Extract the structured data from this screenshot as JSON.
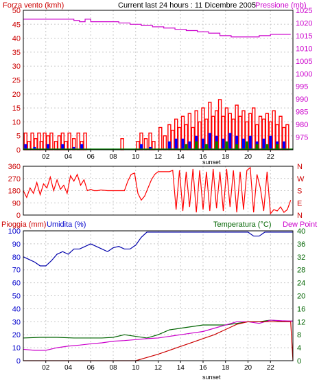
{
  "header": {
    "left_label": "Forza vento (kmh)",
    "center_label": "Current last 24 hours : 11 Dicembre 2005",
    "right_label": "Pressione (mb)"
  },
  "colors": {
    "frame": "#000000",
    "grid": "#c8c8c8",
    "wind": "#ff0000",
    "wind_mid": "#0000ff",
    "wind_low": "#008000",
    "pressure": "#cc00cc",
    "direction": "#ff0000",
    "rain": "#cc0000",
    "humidity": "#0000aa",
    "temperature": "#006400",
    "dewpoint": "#cc00cc",
    "left_axis_red": "#cc0000",
    "right_axis_magenta": "#cc00cc",
    "humidity_axis": "#0000cc",
    "temp_axis": "#006400"
  },
  "chart_data": [
    {
      "type": "bar",
      "title": "Current last 24 hours : 11 Dicembre 2005",
      "ylabel": "Forza vento (kmh)",
      "y2label": "Pressione (mb)",
      "ylim": [
        0,
        50
      ],
      "y2lim": [
        970,
        1025
      ],
      "x_ticks": [
        "02",
        "04",
        "06",
        "08",
        "10",
        "12",
        "14",
        "16",
        "18",
        "20",
        "22"
      ],
      "x_range": [
        0,
        24
      ],
      "sunset_label": "sunset",
      "y_ticks": [
        0,
        5,
        10,
        15,
        20,
        25,
        30,
        35,
        40,
        45,
        50
      ],
      "y2_ticks": [
        975,
        980,
        985,
        990,
        995,
        1000,
        1005,
        1010,
        1015,
        1020,
        1025
      ],
      "wind_gust_x": [
        0.2,
        0.5,
        0.8,
        1.1,
        1.4,
        1.6,
        1.9,
        2.2,
        2.5,
        2.9,
        3.2,
        3.5,
        3.8,
        4.1,
        4.5,
        4.9,
        5.2,
        5.5,
        8.8,
        10.2,
        10.5,
        10.9,
        11.3,
        11.6,
        12.2,
        12.6,
        13.0,
        13.3,
        13.6,
        13.9,
        14.2,
        14.5,
        14.8,
        15.1,
        15.4,
        15.7,
        16.0,
        16.3,
        16.6,
        16.9,
        17.2,
        17.5,
        17.8,
        18.1,
        18.4,
        18.7,
        19.0,
        19.3,
        19.6,
        19.9,
        20.2,
        20.5,
        20.8,
        21.1,
        21.4,
        21.7,
        22.0,
        22.3,
        22.6,
        22.9,
        23.2,
        23.5
      ],
      "wind_gust_y": [
        6,
        3,
        6,
        4,
        6,
        3,
        6,
        5,
        6,
        3,
        5,
        6,
        3,
        6,
        4,
        6,
        3,
        6,
        4,
        3,
        6,
        4,
        6,
        3,
        8,
        5,
        9,
        7,
        11,
        8,
        12,
        9,
        13,
        8,
        14,
        10,
        15,
        11,
        17,
        12,
        14,
        18,
        12,
        15,
        13,
        11,
        16,
        12,
        14,
        10,
        13,
        15,
        9,
        12,
        11,
        13,
        10,
        14,
        9,
        12,
        8,
        9
      ],
      "wind_avg_x": [
        0.2,
        1.0,
        2.2,
        3.5,
        4.5,
        5.2,
        10.5,
        11.3,
        13.0,
        13.6,
        14.2,
        14.8,
        15.4,
        16.0,
        16.6,
        17.2,
        17.8,
        18.4,
        19.0,
        19.6,
        20.2,
        20.8,
        21.4,
        22.0,
        22.6,
        23.2
      ],
      "wind_avg_y": [
        2,
        1,
        2,
        2,
        1,
        2,
        2,
        1,
        3,
        4,
        4,
        3,
        5,
        4,
        6,
        5,
        4,
        6,
        5,
        4,
        5,
        3,
        4,
        5,
        3,
        3
      ],
      "wind_low_x": [
        14.5,
        15.4,
        16.3,
        17.2,
        18.1,
        19.0,
        19.9,
        20.8,
        21.7,
        22.6
      ],
      "wind_low_y": [
        2,
        3,
        2,
        3,
        3,
        2,
        3,
        2,
        2,
        2
      ],
      "pressure_x": [
        0,
        3.5,
        4.5,
        5.0,
        5.5,
        6.0,
        7.0,
        8.5,
        9.5,
        10.5,
        11.5,
        12.5,
        13.5,
        14.5,
        15.5,
        16.5,
        17.5,
        18.5,
        19.5,
        20.0,
        21.0,
        22.0,
        23.0,
        23.8
      ],
      "pressure_y": [
        1021.5,
        1021.5,
        1021,
        1020.5,
        1021.5,
        1020.5,
        1020.5,
        1020,
        1019.5,
        1019,
        1018.5,
        1018,
        1017.5,
        1017,
        1016.5,
        1016,
        1015,
        1014.5,
        1014.5,
        1014.5,
        1015,
        1015.5,
        1015.5,
        1015.5
      ]
    },
    {
      "type": "line",
      "ylabel_ticks": [
        "360",
        "270",
        "180",
        "90",
        "0"
      ],
      "y2_labels": [
        "N",
        "W",
        "S",
        "E",
        "N"
      ],
      "ylim": [
        0,
        360
      ],
      "x_range": [
        0,
        24
      ],
      "direction_x": [
        0,
        0.3,
        0.6,
        0.9,
        1.2,
        1.5,
        1.8,
        2.1,
        2.4,
        2.7,
        3.0,
        3.3,
        3.6,
        3.9,
        4.2,
        4.5,
        4.8,
        5.1,
        5.4,
        5.7,
        6.0,
        6.3,
        6.6,
        6.9,
        7.5,
        8.5,
        9.0,
        9.3,
        9.6,
        9.9,
        10.2,
        10.5,
        10.8,
        11.1,
        11.4,
        11.7,
        12.0,
        12.3,
        12.6,
        13.0,
        13.3,
        13.6,
        13.9,
        14.2,
        14.5,
        14.8,
        15.1,
        15.4,
        15.7,
        16.0,
        16.3,
        16.6,
        16.9,
        17.2,
        17.5,
        17.8,
        18.1,
        18.4,
        18.7,
        19.0,
        19.3,
        19.6,
        19.9,
        20.2,
        20.5,
        20.8,
        21.1,
        21.4,
        21.7,
        22.0,
        22.3,
        22.6,
        22.9,
        23.2,
        23.5,
        23.8
      ],
      "direction_y": [
        180,
        130,
        200,
        160,
        240,
        150,
        230,
        200,
        280,
        180,
        260,
        190,
        220,
        160,
        290,
        250,
        300,
        220,
        260,
        180,
        190,
        180,
        180,
        185,
        180,
        180,
        180,
        250,
        300,
        310,
        160,
        110,
        140,
        200,
        260,
        300,
        320,
        320,
        320,
        320,
        330,
        40,
        330,
        30,
        320,
        60,
        340,
        20,
        330,
        40,
        320,
        30,
        340,
        50,
        320,
        30,
        340,
        60,
        330,
        20,
        320,
        40,
        330,
        350,
        20,
        300,
        200,
        30,
        320,
        10,
        40,
        30,
        60,
        20,
        40,
        110
      ]
    },
    {
      "type": "line",
      "left_label_rain": "Pioggia (mm)",
      "left_label_humidity": "Umidita (%)",
      "right_label_temp": "Temperatura (°C)",
      "right_label_dew": "Dew Point",
      "ylim": [
        0,
        100
      ],
      "y2lim": [
        0,
        40
      ],
      "y_ticks": [
        0,
        10,
        20,
        30,
        40,
        50,
        60,
        70,
        80,
        90,
        100
      ],
      "y2_ticks": [
        0,
        4,
        8,
        12,
        16,
        20,
        24,
        28,
        32,
        36,
        40
      ],
      "x_ticks": [
        "02",
        "04",
        "06",
        "08",
        "10",
        "12",
        "14",
        "16",
        "18",
        "20",
        "22"
      ],
      "x_range": [
        0,
        24
      ],
      "sunset_label": "sunset",
      "humidity_x": [
        0,
        0.5,
        1.0,
        1.5,
        2.0,
        2.5,
        3.0,
        3.5,
        4.0,
        4.5,
        5.0,
        5.5,
        6.0,
        6.5,
        7.0,
        7.5,
        8.0,
        8.5,
        9.0,
        9.5,
        10.0,
        10.5,
        11.0,
        12.0,
        14.0,
        16.0,
        18.0,
        20.0,
        20.5,
        21.0,
        21.5,
        22.0,
        23.0,
        24.0
      ],
      "humidity_y": [
        80,
        78,
        76,
        73,
        73,
        77,
        82,
        84,
        82,
        86,
        86,
        88,
        90,
        88,
        86,
        84,
        87,
        88,
        86,
        86,
        89,
        95,
        99,
        99,
        99,
        99,
        99,
        99,
        96,
        96,
        99,
        99,
        99,
        99
      ],
      "temperature_x": [
        0,
        1.5,
        3.0,
        4.5,
        6.0,
        7.0,
        8.0,
        9.0,
        10.0,
        11.0,
        12.0,
        13.0,
        14.0,
        15.0,
        16.0,
        17.0,
        18.0,
        19.0,
        20.0,
        21.0,
        22.0,
        23.0,
        24.0
      ],
      "temperature_y": [
        7,
        7.2,
        7.2,
        7,
        7,
        7,
        7.2,
        8,
        7.5,
        7,
        8,
        9.5,
        10,
        10.5,
        11,
        11,
        11,
        11.5,
        12,
        12,
        12.5,
        12.2,
        12.2
      ],
      "dewpoint_x": [
        0,
        1.0,
        2.0,
        3.0,
        4.0,
        5.0,
        6.0,
        7.0,
        8.0,
        9.0,
        10.0,
        11.0,
        12.0,
        13.0,
        14.0,
        15.0,
        16.0,
        17.0,
        18.0,
        19.0,
        20.0,
        21.0,
        22.0,
        23.0,
        24.0
      ],
      "dewpoint_y": [
        3.5,
        3.2,
        3.2,
        4,
        4.5,
        4.8,
        5.2,
        5.5,
        6,
        6.2,
        6.5,
        6.8,
        7,
        7.5,
        8,
        8.5,
        9,
        10,
        11,
        12,
        12,
        11.5,
        12.5,
        12.3,
        12.2
      ],
      "rain_x": [
        0,
        10.0,
        11.0,
        12.0,
        13.0,
        14.0,
        15.0,
        16.0,
        17.0,
        18.0,
        19.0,
        20.0,
        21.0,
        22.0,
        23.0,
        23.8,
        24.0
      ],
      "rain_y": [
        0,
        0,
        2.5,
        5,
        8,
        11,
        14,
        17,
        20,
        24,
        28,
        30,
        30,
        30,
        30,
        30,
        0
      ]
    }
  ]
}
